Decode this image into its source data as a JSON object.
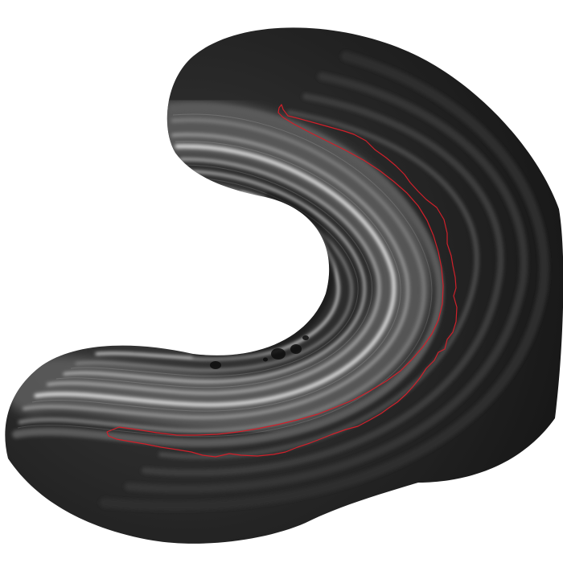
{
  "image": {
    "subject": "grayscale-curved-layered-tissue-section",
    "background_color": "#ffffff",
    "tissue_color": "#2b2b2b",
    "outline_color": "#d0202a"
  }
}
